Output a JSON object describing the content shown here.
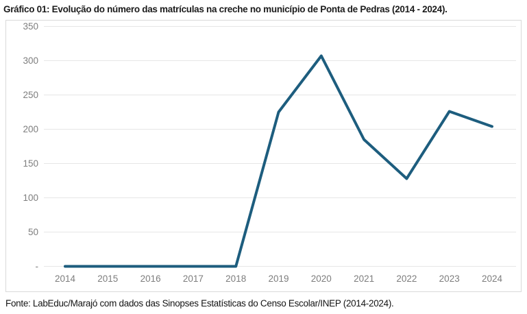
{
  "title": "Gráfico 01: Evolução do número das matrículas na creche no município de Ponta de Pedras (2014 - 2024).",
  "footer": "Fonte: LabEduc/Marajó com dados das Sinopses Estatísticas do Censo Escolar/INEP (2014-2024).",
  "chart_data": {
    "type": "line",
    "title": "Gráfico 01: Evolução do número das matrículas na creche no município de Ponta de Pedras (2014 - 2024).",
    "source": "Fonte: LabEduc/Marajó com dados das Sinopses Estatísticas do Censo Escolar/INEP (2014-2024).",
    "categories": [
      "2014",
      "2015",
      "2016",
      "2017",
      "2018",
      "2019",
      "2020",
      "2021",
      "2022",
      "2023",
      "2024"
    ],
    "values": [
      0,
      0,
      0,
      0,
      0,
      225,
      307,
      185,
      128,
      226,
      204
    ],
    "xlabel": "",
    "ylabel": "",
    "ylim": [
      0,
      350
    ],
    "ytick_step": 50,
    "zero_tick_label": "-",
    "grid": true,
    "legend_position": "none",
    "line_color": "#1d5d7e",
    "grid_color": "#e6e6e6",
    "tick_label_color": "#7d7d7d",
    "frame_border_color": "#d9d9d9"
  }
}
